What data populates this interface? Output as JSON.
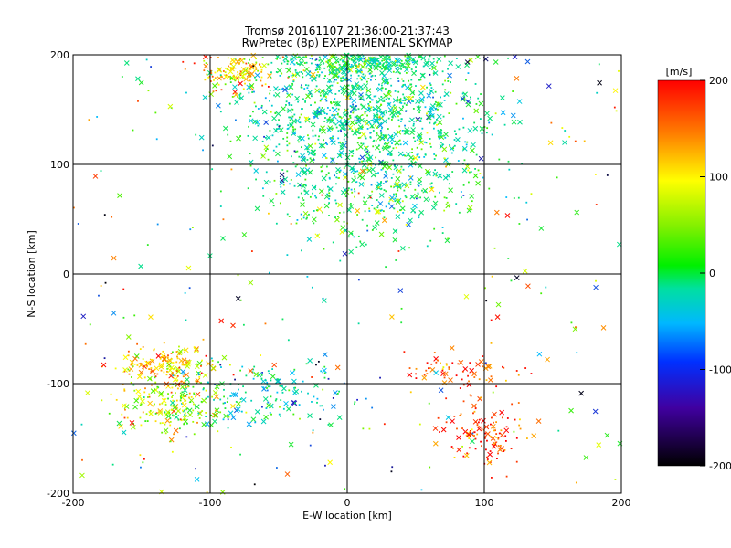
{
  "chart_data": {
    "type": "scatter",
    "title": "Tromsø 20161107 21:36:00-21:37:43",
    "subtitle": "RwPretec (8p) EXPERIMENTAL SKYMAP",
    "xlabel": "E-W location [km]",
    "ylabel": "N-S location [km]",
    "xlim": [
      -200,
      200
    ],
    "ylim": [
      -200,
      200
    ],
    "x_ticks": [
      "-200",
      "-100",
      "0",
      "100",
      "200"
    ],
    "y_ticks": [
      "-200",
      "-100",
      "0",
      "100",
      "200"
    ],
    "grid": true,
    "grid_lines_x": [
      -100,
      0,
      100
    ],
    "grid_lines_y": [
      -100,
      0,
      100
    ],
    "markers": [
      "dot",
      "x"
    ],
    "colorbar": {
      "label": "[m/s]",
      "range": [
        -200,
        200
      ],
      "ticks": [
        "200",
        "100",
        "0",
        "-100",
        "-200"
      ],
      "colormap": [
        "#000000",
        "#2020d0",
        "#00c0ff",
        "#00e080",
        "#40f000",
        "#ffff00",
        "#ff8000",
        "#ff0000"
      ]
    },
    "clusters": [
      {
        "center": [
          5,
          195
        ],
        "spread": [
          35,
          10
        ],
        "velocity": -20
      },
      {
        "center": [
          -80,
          185
        ],
        "spread": [
          15,
          10
        ],
        "velocity": 110
      },
      {
        "center": [
          10,
          145
        ],
        "spread": [
          45,
          25
        ],
        "velocity": -30
      },
      {
        "center": [
          20,
          80
        ],
        "spread": [
          40,
          25
        ],
        "velocity": -10
      },
      {
        "center": [
          -130,
          -85
        ],
        "spread": [
          18,
          10
        ],
        "velocity": 110
      },
      {
        "center": [
          -130,
          -120
        ],
        "spread": [
          20,
          15
        ],
        "velocity": 60
      },
      {
        "center": [
          -60,
          -110
        ],
        "spread": [
          30,
          15
        ],
        "velocity": -50
      },
      {
        "center": [
          100,
          -145
        ],
        "spread": [
          15,
          15
        ],
        "velocity": 170
      },
      {
        "center": [
          80,
          -90
        ],
        "spread": [
          20,
          10
        ],
        "velocity": 170
      }
    ]
  }
}
